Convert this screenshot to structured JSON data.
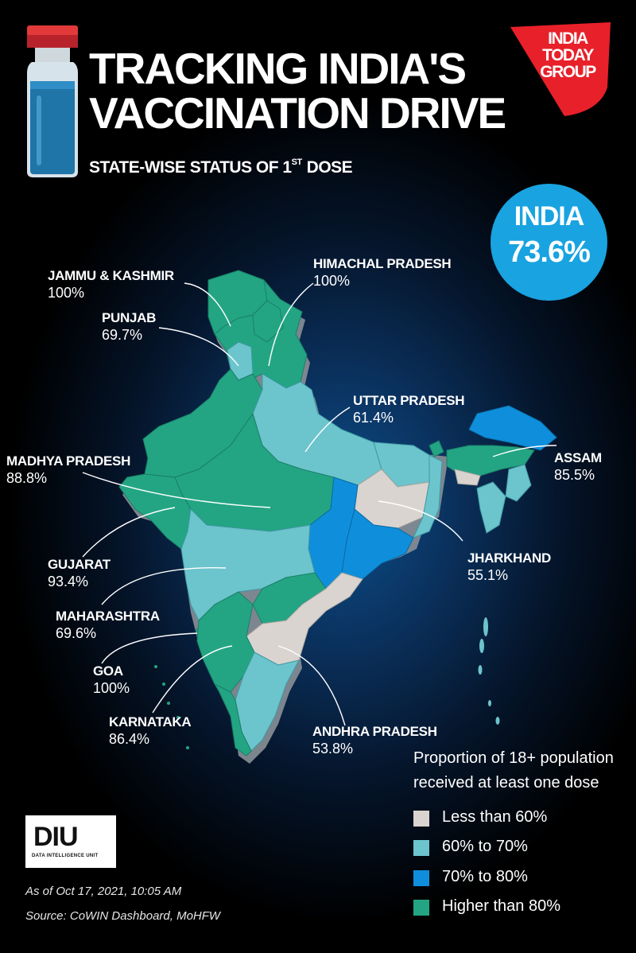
{
  "title_line1": "TRACKING INDIA'S",
  "title_line2": "VACCINATION DRIVE",
  "subtitle_pre": "STATE-WISE STATUS OF 1",
  "subtitle_sup": "ST",
  "subtitle_post": "DOSE",
  "logo": {
    "line1": "INDIA",
    "line2": "TODAY",
    "line3": "GROUP"
  },
  "national": {
    "name": "INDIA",
    "value": "73.6%"
  },
  "states": [
    {
      "name": "JAMMU & KASHMIR",
      "value": "100%",
      "category": "Higher than 80%"
    },
    {
      "name": "PUNJAB",
      "value": "69.7%",
      "category": "60% to 70%"
    },
    {
      "name": "HIMACHAL PRADESH",
      "value": "100%",
      "category": "Higher than 80%"
    },
    {
      "name": "UTTAR PRADESH",
      "value": "61.4%",
      "category": "60% to 70%"
    },
    {
      "name": "ASSAM",
      "value": "85.5%",
      "category": "Higher than 80%"
    },
    {
      "name": "MADHYA PRADESH",
      "value": "88.8%",
      "category": "Higher than 80%"
    },
    {
      "name": "JHARKHAND",
      "value": "55.1%",
      "category": "Less than 60%"
    },
    {
      "name": "GUJARAT",
      "value": "93.4%",
      "category": "Higher than 80%"
    },
    {
      "name": "MAHARASHTRA",
      "value": "69.6%",
      "category": "60% to 70%"
    },
    {
      "name": "GOA",
      "value": "100%",
      "category": "Higher than 80%"
    },
    {
      "name": "KARNATAKA",
      "value": "86.4%",
      "category": "Higher than 80%"
    },
    {
      "name": "ANDHRA PRADESH",
      "value": "53.8%",
      "category": "Less than 60%"
    }
  ],
  "legend": {
    "title": "Proportion of 18+ population received at least one dose",
    "items": [
      {
        "label": "Less than 60%",
        "color": "#d9d4d0"
      },
      {
        "label": "60% to 70%",
        "color": "#6cc4cc"
      },
      {
        "label": "70% to 80%",
        "color": "#0f8fdb"
      },
      {
        "label": "Higher than 80%",
        "color": "#23a584"
      }
    ]
  },
  "colors": {
    "high": "#23a584",
    "mid": "#6cc4cc",
    "seventy": "#0f8fdb",
    "low": "#d9d4d0",
    "badge": "#19a3e0",
    "brand_red": "#e8202a"
  },
  "diu": {
    "mark": "DIU",
    "sub": "DATA INTELLIGENCE UNIT"
  },
  "footer": {
    "date": "As of Oct 17, 2021, 10:05 AM",
    "source": "Source: CoWIN Dashboard, MoHFW"
  }
}
